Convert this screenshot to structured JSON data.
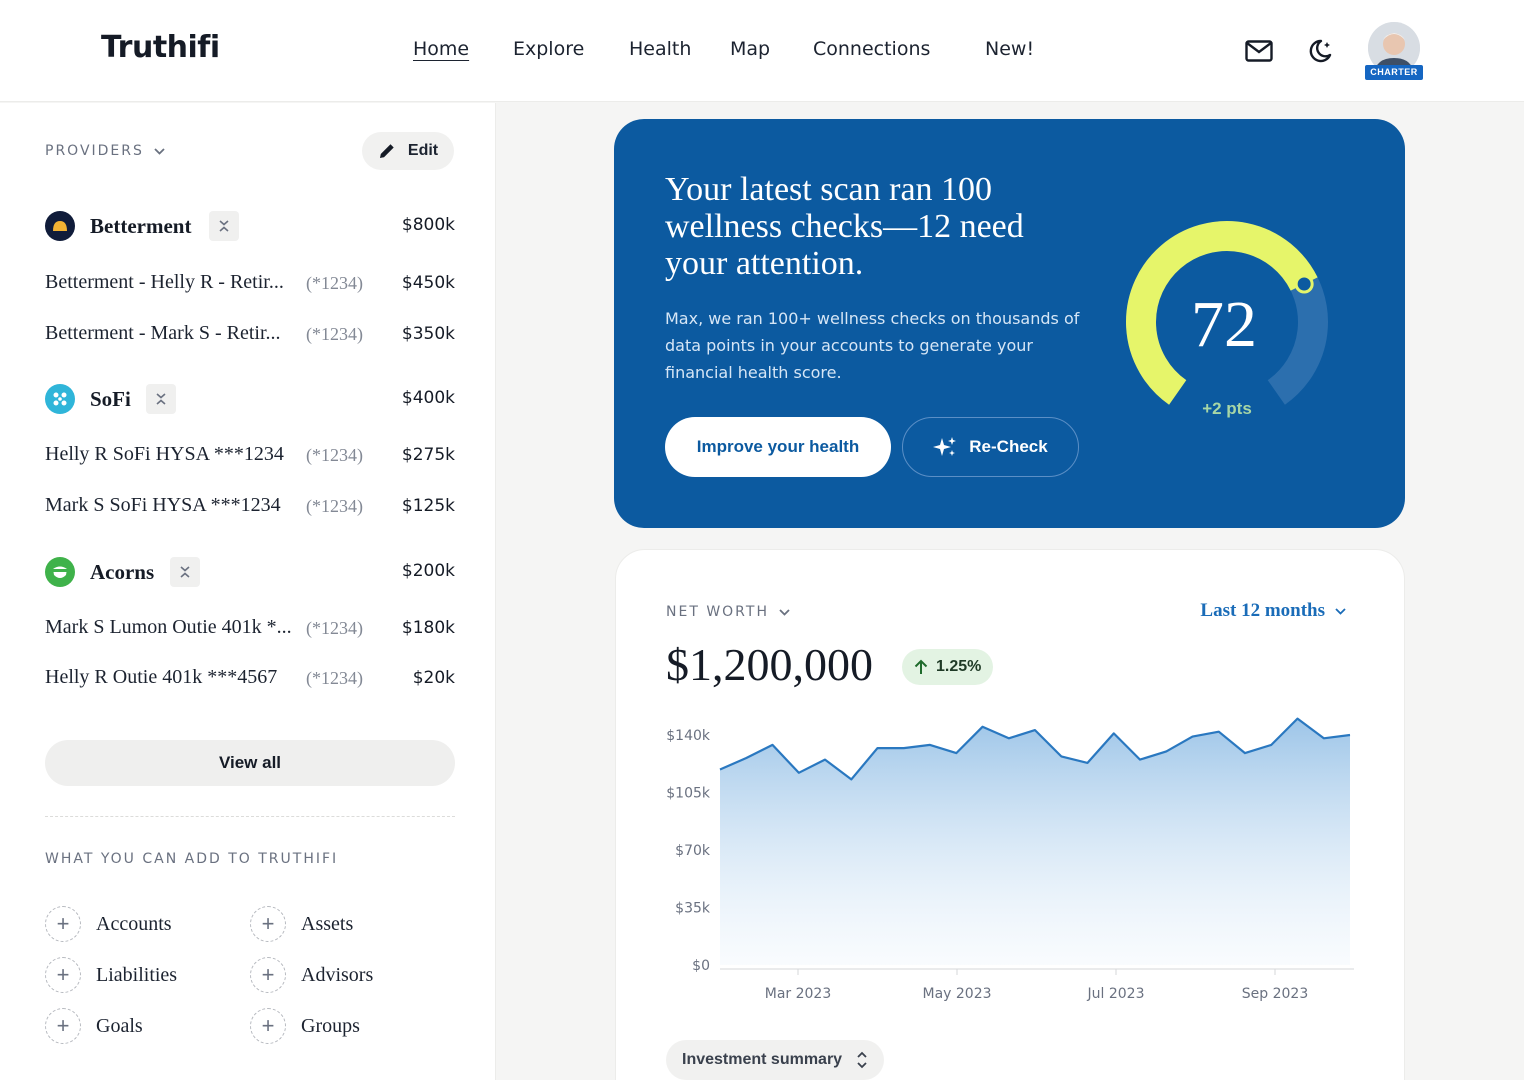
{
  "header": {
    "logo": "Truthifi",
    "nav": [
      {
        "label": "Home",
        "active": true
      },
      {
        "label": "Explore"
      },
      {
        "label": "Health"
      },
      {
        "label": "Map"
      },
      {
        "label": "Connections"
      },
      {
        "label": "New!"
      }
    ],
    "badge": "CHARTER"
  },
  "sidebar": {
    "providers_label": "PROVIDERS",
    "edit_label": "Edit",
    "providers": [
      {
        "name": "Betterment",
        "value": "$800k",
        "accounts": [
          {
            "name": "Betterment - Helly R - Retir...",
            "mask": "(*1234)",
            "value": "$450k"
          },
          {
            "name": "Betterment - Mark S - Retir...",
            "mask": "(*1234)",
            "value": "$350k"
          }
        ]
      },
      {
        "name": "SoFi",
        "value": "$400k",
        "accounts": [
          {
            "name": "Helly R SoFi HYSA ***1234",
            "mask": "(*1234)",
            "value": "$275k"
          },
          {
            "name": "Mark S SoFi HYSA ***1234",
            "mask": "(*1234)",
            "value": "$125k"
          }
        ]
      },
      {
        "name": "Acorns",
        "value": "$200k",
        "accounts": [
          {
            "name": "Mark S Lumon Outie 401k *...",
            "mask": "(*1234)",
            "value": "$180k"
          },
          {
            "name": "Helly R Outie 401k ***4567",
            "mask": "(*1234)",
            "value": "$20k"
          }
        ]
      }
    ],
    "view_all": "View all",
    "add_label": "WHAT YOU CAN ADD TO TRUTHIFI",
    "add_items": [
      "Accounts",
      "Assets",
      "Liabilities",
      "Advisors",
      "Goals",
      "Groups"
    ]
  },
  "health": {
    "title": "Your latest scan ran 100 wellness checks—12 need your attention.",
    "body": "Max, we ran 100+ wellness checks on thousands of data points in your accounts to generate your financial health score.",
    "improve_label": "Improve your health",
    "recheck_label": "Re-Check",
    "score": "72",
    "delta": "+2 pts",
    "score_max": 100,
    "colors": {
      "card": "#0c5aa0",
      "arc": "#e6f56a"
    }
  },
  "networth": {
    "label": "NET WORTH",
    "range": "Last 12 months",
    "value": "$1,200,000",
    "change": "1.25%",
    "summary_label": "Investment summary"
  },
  "chart_data": {
    "type": "area",
    "title": "",
    "xlabel": "",
    "ylabel": "",
    "ylim": [
      0,
      140000
    ],
    "y_ticks": [
      "$0",
      "$35k",
      "$70k",
      "$105k",
      "$140k"
    ],
    "x_ticks": [
      "Mar 2023",
      "May 2023",
      "Jul 2023",
      "Sep 2023"
    ],
    "series": [
      {
        "values": [
          119000,
          126000,
          134000,
          117000,
          125000,
          113000,
          132000,
          132000,
          134000,
          129000,
          145000,
          138000,
          143000,
          127000,
          123000,
          141000,
          125000,
          130000,
          139000,
          142000,
          129000,
          134000,
          150000,
          138000,
          140000
        ]
      }
    ],
    "grid": false,
    "color": "#2a78c0"
  }
}
